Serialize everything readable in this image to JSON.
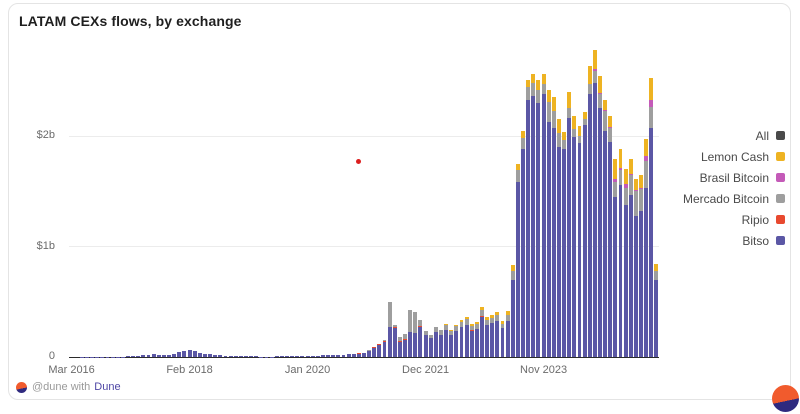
{
  "card": {
    "title": "LATAM CEXs flows, by exchange"
  },
  "footer": {
    "attribution_prefix": "@dune with",
    "attribution_link": "Dune"
  },
  "colors": {
    "bitso": "#5b57a5",
    "ripio": "#e8492f",
    "mercado_bitcoin": "#9e9e9e",
    "brasil_bitcoin": "#c45ab8",
    "lemon_cash": "#eeb322",
    "all": "#4a4a4a",
    "grid": "#ececec",
    "axis": "#2b2b2b",
    "axis_text": "#6b6b6b",
    "card_border": "#e4e4e4",
    "link": "#4e46a5",
    "logo_orange": "#f15b2d",
    "logo_navy": "#2f2a7f",
    "stray_dot_red": "#dc1f1f"
  },
  "legend": [
    {
      "key": "all",
      "label": "All",
      "color": "#4a4a4a"
    },
    {
      "key": "lemon_cash",
      "label": "Lemon Cash",
      "color": "#eeb322"
    },
    {
      "key": "brasil_bitcoin",
      "label": "Brasil Bitcoin",
      "color": "#c45ab8"
    },
    {
      "key": "mercado_bitcoin",
      "label": "Mercado Bitcoin",
      "color": "#9e9e9e"
    },
    {
      "key": "ripio",
      "label": "Ripio",
      "color": "#e8492f"
    },
    {
      "key": "bitso",
      "label": "Bitso",
      "color": "#5b57a5"
    }
  ],
  "chart_data": {
    "type": "bar",
    "subtype": "stacked-monthly",
    "title": "LATAM CEXs flows, by exchange",
    "value_unit": "USD millions",
    "x_start": "2016-03",
    "x_end": "2025-09",
    "frequency": "monthly",
    "n_months": 115,
    "x_tick_labels": [
      "Mar 2016",
      "Feb 2018",
      "Jan 2020",
      "Dec 2021",
      "Nov 2023"
    ],
    "x_tick_indices": [
      0,
      23,
      46,
      69,
      92
    ],
    "y_ticks": [
      {
        "label": "0",
        "value": 0
      },
      {
        "label": "$1b",
        "value": 1000
      },
      {
        "label": "$2b",
        "value": 2000
      }
    ],
    "ylim": [
      0,
      2815
    ],
    "grid": true,
    "legend_position": "right",
    "stack_order_bottom_to_top": [
      "Bitso",
      "Ripio",
      "Mercado Bitcoin",
      "Brasil Bitcoin",
      "Lemon Cash"
    ],
    "series": [
      {
        "name": "Bitso",
        "color": "#5b57a5",
        "values": [
          0,
          0,
          1,
          1,
          1,
          1,
          2,
          2,
          2,
          3,
          4,
          5,
          6,
          8,
          16,
          20,
          24,
          20,
          17,
          22,
          28,
          42,
          52,
          68,
          58,
          38,
          28,
          24,
          18,
          14,
          11,
          9,
          8,
          8,
          6,
          5,
          5,
          4,
          4,
          4,
          5,
          5,
          6,
          7,
          7,
          8,
          9,
          10,
          12,
          14,
          15,
          17,
          18,
          20,
          24,
          28,
          30,
          34,
          55,
          85,
          110,
          140,
          270,
          265,
          140,
          155,
          225,
          215,
          275,
          200,
          170,
          225,
          200,
          245,
          200,
          235,
          270,
          290,
          240,
          255,
          365,
          290,
          310,
          330,
          260,
          330,
          700,
          1580,
          1880,
          2330,
          2360,
          2300,
          2380,
          2130,
          2070,
          1900,
          1880,
          2160,
          1990,
          1940,
          2100,
          2380,
          2480,
          2250,
          2050,
          1950,
          1450,
          1560,
          1380,
          1470,
          1280,
          1320,
          1530,
          2070,
          700
        ]
      },
      {
        "name": "Ripio",
        "color": "#e8492f",
        "values": [
          0,
          0,
          0,
          0,
          0,
          0,
          0,
          0,
          0,
          0,
          0,
          0,
          0,
          0,
          0,
          0,
          0,
          0,
          0,
          0,
          0,
          0,
          0,
          0,
          0,
          0,
          0,
          0,
          0,
          0,
          0,
          0,
          0,
          0,
          0,
          0,
          0,
          0,
          0,
          0,
          0,
          0,
          0,
          0,
          0,
          0,
          0,
          0,
          0,
          0,
          0,
          0,
          0,
          0,
          0,
          2,
          2,
          3,
          3,
          4,
          4,
          5,
          5,
          5,
          4,
          4,
          4,
          4,
          4,
          3,
          3,
          3,
          2,
          2,
          2,
          2,
          2,
          2,
          2,
          2,
          2,
          2,
          2,
          0,
          0,
          0,
          0,
          0,
          0,
          0,
          0,
          0,
          0,
          0,
          0,
          0,
          0,
          0,
          0,
          0,
          0,
          0,
          0,
          0,
          0,
          0,
          0,
          0,
          0,
          0,
          0,
          0,
          0,
          0,
          0
        ]
      },
      {
        "name": "Mercado Bitcoin",
        "color": "#9e9e9e",
        "values": [
          0,
          0,
          0,
          0,
          0,
          0,
          0,
          0,
          0,
          0,
          0,
          0,
          0,
          0,
          0,
          0,
          0,
          0,
          0,
          0,
          0,
          0,
          0,
          0,
          0,
          0,
          0,
          0,
          0,
          0,
          0,
          0,
          0,
          0,
          0,
          0,
          0,
          0,
          0,
          0,
          0,
          0,
          0,
          0,
          0,
          0,
          0,
          0,
          0,
          0,
          0,
          0,
          0,
          0,
          0,
          0,
          0,
          2,
          2,
          3,
          6,
          8,
          225,
          20,
          40,
          50,
          200,
          185,
          55,
          30,
          28,
          40,
          40,
          45,
          35,
          40,
          45,
          50,
          40,
          40,
          55,
          45,
          45,
          50,
          40,
          50,
          80,
          110,
          105,
          110,
          120,
          120,
          90,
          180,
          160,
          130,
          80,
          90,
          70,
          60,
          50,
          90,
          110,
          130,
          180,
          120,
          130,
          130,
          150,
          180,
          220,
          200,
          240,
          190,
          75
        ]
      },
      {
        "name": "Brasil Bitcoin",
        "color": "#c45ab8",
        "values": [
          0,
          0,
          0,
          0,
          0,
          0,
          0,
          0,
          0,
          0,
          0,
          0,
          0,
          0,
          0,
          0,
          0,
          0,
          0,
          0,
          0,
          0,
          0,
          0,
          0,
          0,
          0,
          0,
          0,
          0,
          0,
          0,
          0,
          0,
          0,
          0,
          0,
          0,
          0,
          0,
          0,
          0,
          0,
          0,
          0,
          0,
          0,
          0,
          0,
          0,
          0,
          0,
          0,
          0,
          0,
          0,
          0,
          0,
          0,
          0,
          0,
          0,
          0,
          0,
          0,
          0,
          0,
          0,
          0,
          0,
          0,
          0,
          0,
          0,
          0,
          0,
          0,
          2,
          0,
          2,
          2,
          0,
          0,
          0,
          0,
          0,
          0,
          0,
          0,
          0,
          0,
          0,
          0,
          0,
          0,
          0,
          0,
          0,
          0,
          0,
          0,
          0,
          20,
          10,
          10,
          10,
          30,
          20,
          40,
          10,
          10,
          10,
          50,
          70,
          5
        ]
      },
      {
        "name": "Lemon Cash",
        "color": "#eeb322",
        "values": [
          0,
          0,
          0,
          0,
          0,
          0,
          0,
          0,
          0,
          0,
          0,
          0,
          0,
          0,
          0,
          0,
          0,
          0,
          0,
          0,
          0,
          0,
          0,
          0,
          0,
          0,
          0,
          0,
          0,
          0,
          0,
          0,
          0,
          0,
          0,
          0,
          0,
          0,
          0,
          0,
          0,
          0,
          0,
          0,
          0,
          0,
          0,
          0,
          0,
          0,
          0,
          0,
          0,
          0,
          0,
          0,
          0,
          0,
          0,
          0,
          0,
          0,
          0,
          0,
          0,
          0,
          0,
          0,
          0,
          0,
          0,
          4,
          6,
          10,
          10,
          12,
          16,
          20,
          18,
          18,
          28,
          22,
          22,
          24,
          26,
          35,
          55,
          60,
          65,
          70,
          80,
          90,
          90,
          110,
          120,
          120,
          80,
          150,
          120,
          90,
          70,
          160,
          170,
          150,
          90,
          100,
          180,
          170,
          130,
          130,
          100,
          120,
          150,
          200,
          60
        ]
      }
    ],
    "annotations": [
      {
        "type": "point",
        "note": "stray red dot",
        "color": "#dc1f1f",
        "x_index": 56,
        "value": 1770
      }
    ]
  }
}
